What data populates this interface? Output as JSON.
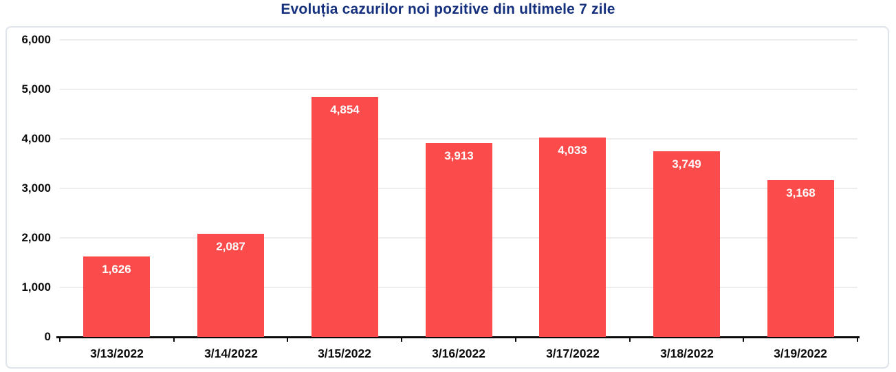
{
  "title": "Evoluția cazurilor noi pozitive din ultimele 7 zile",
  "colors": {
    "title": "#14307E",
    "bar": "#FB4B4B",
    "bar_label": "#FFFFFF",
    "axis": "#0A0A0A",
    "gridline": "#EDEDED",
    "frame_border": "#DFE3EA",
    "tick_label": "#0B0B0B"
  },
  "chart_data": {
    "type": "bar",
    "title": "Evoluția cazurilor noi pozitive din ultimele 7 zile",
    "categories": [
      "3/13/2022",
      "3/14/2022",
      "3/15/2022",
      "3/16/2022",
      "3/17/2022",
      "3/18/2022",
      "3/19/2022"
    ],
    "values": [
      1626,
      2087,
      4854,
      3913,
      4033,
      3749,
      3168
    ],
    "value_labels": [
      "1,626",
      "2,087",
      "4,854",
      "3,913",
      "4,033",
      "3,749",
      "3,168"
    ],
    "y_ticks": [
      0,
      1000,
      2000,
      3000,
      4000,
      5000,
      6000
    ],
    "y_tick_labels": [
      "0",
      "1,000",
      "2,000",
      "3,000",
      "4,000",
      "5,000",
      "6,000"
    ],
    "ylim": [
      0,
      6000
    ],
    "xlabel": "",
    "ylabel": "",
    "grid": true,
    "legend": "none",
    "bar_label_position": "inside-top"
  }
}
